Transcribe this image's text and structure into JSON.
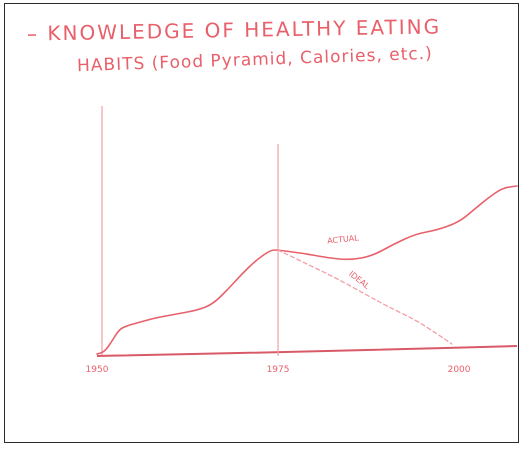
{
  "chart_data": {
    "type": "line",
    "title": "– KNOWLEDGE OF HEALTHY EATING",
    "subtitle": "HABITS (Food Pyramid, Calories, etc.)",
    "x_ticks": [
      "1950",
      "1975",
      "2000"
    ],
    "xlim": [
      1950,
      2008
    ],
    "ylim": [
      0,
      100
    ],
    "series": [
      {
        "name": "ACTUAL",
        "label_text": "ACTUAL",
        "x": [
          1950,
          1951,
          1952,
          1953,
          1954,
          1956,
          1958,
          1961,
          1964,
          1966,
          1968,
          1970,
          1972,
          1974,
          1975,
          1977,
          1979,
          1982,
          1985,
          1988,
          1991,
          1994,
          1997,
          2000,
          2002,
          2004,
          2006,
          2008
        ],
        "y": [
          0,
          1,
          6,
          12,
          14,
          16,
          18,
          20,
          22,
          25,
          32,
          40,
          47,
          52,
          52,
          51,
          50,
          48,
          47,
          49,
          55,
          60,
          62,
          66,
          72,
          78,
          83,
          84
        ]
      },
      {
        "name": "IDEAL",
        "label_text": "IDEAL",
        "style": "dashed",
        "x": [
          1975,
          1979,
          1983,
          1987,
          1990,
          1994,
          1997,
          1999
        ],
        "y": [
          52,
          45,
          38,
          30,
          24,
          17,
          10,
          5
        ]
      }
    ],
    "grid": false,
    "legend": "none"
  },
  "colors": {
    "ink": "#e8606a",
    "ink_light": "#f0a0a6",
    "axis_ink": "#d85a66"
  }
}
